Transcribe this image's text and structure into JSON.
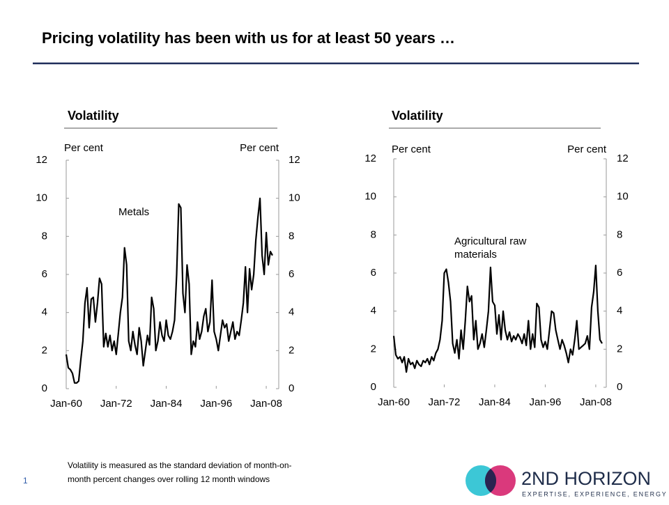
{
  "title": "Pricing volatility has been with us for at least 50 years …",
  "footnote": [
    "Volatility is measured as the standard deviation of month-on-",
    "month percent changes over rolling 12 month windows"
  ],
  "page_number": "1",
  "logo": {
    "name": "2ND HORIZON",
    "tagline": "EXPERTISE, EXPERIENCE, ENERGY"
  },
  "chart_data": [
    {
      "type": "line",
      "title": "Volatility",
      "y_label": "Per cent",
      "y2_label": "Per cent",
      "annotation": [
        "Metals"
      ],
      "color": "#000000",
      "x": [
        1960,
        1960.5,
        1961,
        1961.5,
        1962,
        1962.5,
        1963,
        1963.5,
        1964,
        1964.5,
        1965,
        1965.5,
        1966,
        1966.5,
        1967,
        1967.5,
        1968,
        1968.5,
        1969,
        1969.5,
        1970,
        1970.5,
        1971,
        1971.5,
        1972,
        1972.5,
        1973,
        1973.5,
        1974,
        1974.5,
        1975,
        1975.5,
        1976,
        1976.5,
        1977,
        1977.5,
        1978,
        1978.5,
        1979,
        1979.5,
        1980,
        1980.5,
        1981,
        1981.5,
        1982,
        1982.5,
        1983,
        1983.5,
        1984,
        1984.5,
        1985,
        1985.5,
        1986,
        1986.5,
        1987,
        1987.5,
        1988,
        1988.5,
        1989,
        1989.5,
        1990,
        1990.5,
        1991,
        1991.5,
        1992,
        1992.5,
        1993,
        1993.5,
        1994,
        1994.5,
        1995,
        1995.5,
        1996,
        1996.5,
        1997,
        1997.5,
        1998,
        1998.5,
        1999,
        1999.5,
        2000,
        2000.5,
        2001,
        2001.5,
        2002,
        2002.5,
        2003,
        2003.5,
        2004,
        2004.5,
        2005,
        2005.5,
        2006,
        2006.5,
        2007,
        2007.5,
        2008,
        2008.5,
        2009,
        2009.5
      ],
      "values": [
        1.8,
        1.1,
        1.0,
        0.8,
        0.3,
        0.3,
        0.4,
        1.5,
        2.5,
        4.5,
        5.3,
        3.2,
        4.7,
        4.8,
        3.5,
        4.5,
        5.8,
        5.5,
        2.2,
        2.9,
        2.2,
        2.8,
        2.0,
        2.5,
        1.8,
        2.9,
        4.0,
        4.8,
        7.4,
        6.5,
        2.5,
        2.0,
        3.0,
        2.3,
        1.8,
        3.2,
        2.5,
        1.2,
        2.0,
        2.8,
        2.3,
        4.8,
        4.2,
        2.0,
        2.5,
        3.5,
        2.8,
        2.5,
        3.6,
        2.8,
        2.6,
        3.0,
        3.6,
        6.0,
        9.7,
        9.5,
        5.0,
        4.0,
        6.5,
        5.5,
        1.8,
        2.5,
        2.2,
        3.5,
        2.6,
        3.0,
        3.8,
        4.2,
        3.0,
        3.5,
        5.7,
        3.0,
        2.6,
        2.0,
        2.8,
        3.6,
        3.2,
        3.4,
        2.5,
        3.0,
        3.5,
        2.6,
        3.0,
        2.8,
        3.6,
        4.5,
        6.4,
        4.0,
        6.3,
        5.2,
        6.0,
        7.8,
        9.0,
        10.0,
        7.0,
        6.0,
        8.2,
        6.5,
        7.2,
        7.0
      ],
      "xlim": [
        1960,
        2011
      ],
      "xticks": [
        {
          "value": 1960,
          "label": "Jan-60"
        },
        {
          "value": 1972,
          "label": "Jan-72"
        },
        {
          "value": 1984,
          "label": "Jan-84"
        },
        {
          "value": 1996,
          "label": "Jan-96"
        },
        {
          "value": 2008,
          "label": "Jan-08"
        }
      ],
      "ylim": [
        0,
        12
      ],
      "yticks": [
        0,
        2,
        4,
        6,
        8,
        10,
        12
      ],
      "y2lim": [
        0,
        12
      ],
      "y2ticks": [
        0,
        2,
        4,
        6,
        8,
        10,
        12
      ]
    },
    {
      "type": "line",
      "title": "Volatility",
      "y_label": "Per cent",
      "y2_label": "Per cent",
      "annotation": [
        "Agricultural raw",
        "materials"
      ],
      "color": "#000000",
      "x": [
        1960,
        1960.5,
        1961,
        1961.5,
        1962,
        1962.5,
        1963,
        1963.5,
        1964,
        1964.5,
        1965,
        1965.5,
        1966,
        1966.5,
        1967,
        1967.5,
        1968,
        1968.5,
        1969,
        1969.5,
        1970,
        1970.5,
        1971,
        1971.5,
        1972,
        1972.5,
        1973,
        1973.5,
        1974,
        1974.5,
        1975,
        1975.5,
        1976,
        1976.5,
        1977,
        1977.5,
        1978,
        1978.5,
        1979,
        1979.5,
        1980,
        1980.5,
        1981,
        1981.5,
        1982,
        1982.5,
        1983,
        1983.5,
        1984,
        1984.5,
        1985,
        1985.5,
        1986,
        1986.5,
        1987,
        1987.5,
        1988,
        1988.5,
        1989,
        1989.5,
        1990,
        1990.5,
        1991,
        1991.5,
        1992,
        1992.5,
        1993,
        1993.5,
        1994,
        1994.5,
        1995,
        1995.5,
        1996,
        1996.5,
        1997,
        1997.5,
        1998,
        1998.5,
        1999,
        1999.5,
        2000,
        2000.5,
        2001,
        2001.5,
        2002,
        2002.5,
        2003,
        2003.5,
        2004,
        2004.5,
        2005,
        2005.5,
        2006,
        2006.5,
        2007,
        2007.5,
        2008,
        2008.5,
        2009,
        2009.5
      ],
      "values": [
        2.7,
        1.7,
        1.5,
        1.6,
        1.3,
        1.6,
        0.8,
        1.5,
        1.2,
        1.3,
        1.0,
        1.4,
        1.2,
        1.1,
        1.4,
        1.3,
        1.5,
        1.2,
        1.6,
        1.4,
        1.8,
        2.0,
        2.5,
        3.5,
        6.0,
        6.2,
        5.5,
        4.5,
        2.3,
        1.8,
        2.5,
        1.5,
        3.0,
        2.0,
        3.5,
        5.3,
        4.5,
        4.8,
        2.5,
        3.5,
        2.0,
        2.3,
        2.8,
        2.1,
        3.0,
        4.0,
        6.3,
        4.5,
        4.3,
        2.8,
        3.8,
        2.5,
        4.0,
        3.0,
        2.5,
        2.9,
        2.4,
        2.7,
        2.5,
        2.8,
        2.6,
        2.3,
        2.8,
        2.2,
        3.5,
        2.0,
        2.8,
        2.1,
        4.4,
        4.2,
        2.5,
        2.1,
        2.4,
        2.0,
        3.0,
        4.0,
        3.9,
        3.0,
        2.5,
        2.0,
        2.5,
        2.2,
        1.8,
        1.3,
        2.0,
        1.7,
        2.5,
        3.5,
        2.0,
        2.1,
        2.2,
        2.3,
        2.7,
        2.0,
        4.2,
        5.0,
        6.4,
        4.0,
        2.5,
        2.3
      ],
      "xlim": [
        1960,
        2010.5
      ],
      "xticks": [
        {
          "value": 1960,
          "label": "Jan-60"
        },
        {
          "value": 1972,
          "label": "Jan-72"
        },
        {
          "value": 1984,
          "label": "Jan-84"
        },
        {
          "value": 1996,
          "label": "Jan-96"
        },
        {
          "value": 2008,
          "label": "Jan-08"
        }
      ],
      "ylim": [
        0,
        12
      ],
      "yticks": [
        0,
        2,
        4,
        6,
        8,
        10,
        12
      ],
      "y2lim": [
        0,
        12
      ],
      "y2ticks": [
        0,
        2,
        4,
        6,
        8,
        10,
        12
      ]
    }
  ]
}
